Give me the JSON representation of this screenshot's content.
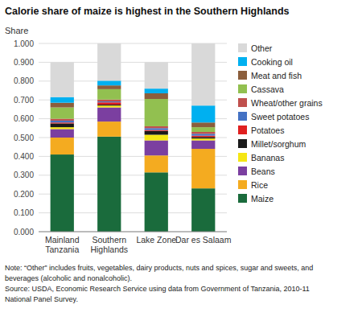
{
  "chart_data": {
    "type": "bar",
    "stacked": true,
    "title": "Calorie share of maize is highest in the Southern Highlands",
    "ylabel": "Share",
    "categories": [
      "Mainland\nTanzania",
      "Southern\nHighlands",
      "Lake Zone",
      "Dar es Salaam"
    ],
    "series": [
      {
        "name": "Maize",
        "color": "#1a6b3c",
        "values": [
          0.41,
          0.505,
          0.315,
          0.23
        ]
      },
      {
        "name": "Rice",
        "color": "#f4ab20",
        "values": [
          0.09,
          0.08,
          0.09,
          0.21
        ]
      },
      {
        "name": "Beans",
        "color": "#7b3fa0",
        "values": [
          0.045,
          0.075,
          0.08,
          0.045
        ]
      },
      {
        "name": "Bananas",
        "color": "#f5e614",
        "values": [
          0.01,
          0.01,
          0.03,
          0.01
        ]
      },
      {
        "name": "Millet/sorghum",
        "color": "#1a1a1a",
        "values": [
          0.02,
          0.005,
          0.02,
          0.008
        ]
      },
      {
        "name": "Potatoes",
        "color": "#e02020",
        "values": [
          0.005,
          0.012,
          0.005,
          0.007
        ]
      },
      {
        "name": "Sweet potatoes",
        "color": "#4472c4",
        "values": [
          0.01,
          0.005,
          0.01,
          0.01
        ]
      },
      {
        "name": "Wheat/other grains",
        "color": "#c0504d",
        "values": [
          0.01,
          0.01,
          0.01,
          0.01
        ]
      },
      {
        "name": "Cassava",
        "color": "#92c050",
        "values": [
          0.06,
          0.055,
          0.145,
          0.025
        ]
      },
      {
        "name": "Meat and fish",
        "color": "#8b5e3c",
        "values": [
          0.025,
          0.02,
          0.03,
          0.025
        ]
      },
      {
        "name": "Cooking oil",
        "color": "#00b0f0",
        "values": [
          0.03,
          0.025,
          0.025,
          0.09
        ]
      },
      {
        "name": "Other",
        "color": "#d9d9d9",
        "values": [
          0.185,
          0.198,
          0.14,
          0.33
        ]
      }
    ],
    "ylim": [
      0,
      1.0
    ],
    "yticks": [
      {
        "value": 0.0,
        "label": "0.000"
      },
      {
        "value": 0.1,
        "label": "0.100"
      },
      {
        "value": 0.2,
        "label": "0.200"
      },
      {
        "value": 0.3,
        "label": "0.300"
      },
      {
        "value": 0.4,
        "label": "0.400"
      },
      {
        "value": 0.5,
        "label": "0.500"
      },
      {
        "value": 0.6,
        "label": "0.600"
      },
      {
        "value": 0.7,
        "label": "0.700"
      },
      {
        "value": 0.8,
        "label": "0.800"
      },
      {
        "value": 0.9,
        "label": "0.900"
      },
      {
        "value": 1.0,
        "label": "1.000"
      }
    ],
    "grid": true,
    "legend": "right",
    "annotations": [
      "Note: “Other” includes fruits, vegetables, dairy products, nuts and spices, sugar and sweets, and",
      "beverages (alcoholic and nonalcoholic).",
      "Source: USDA, Economic Research Service using data from Government of Tanzania, 2010-11",
      "National Panel Survey."
    ]
  }
}
